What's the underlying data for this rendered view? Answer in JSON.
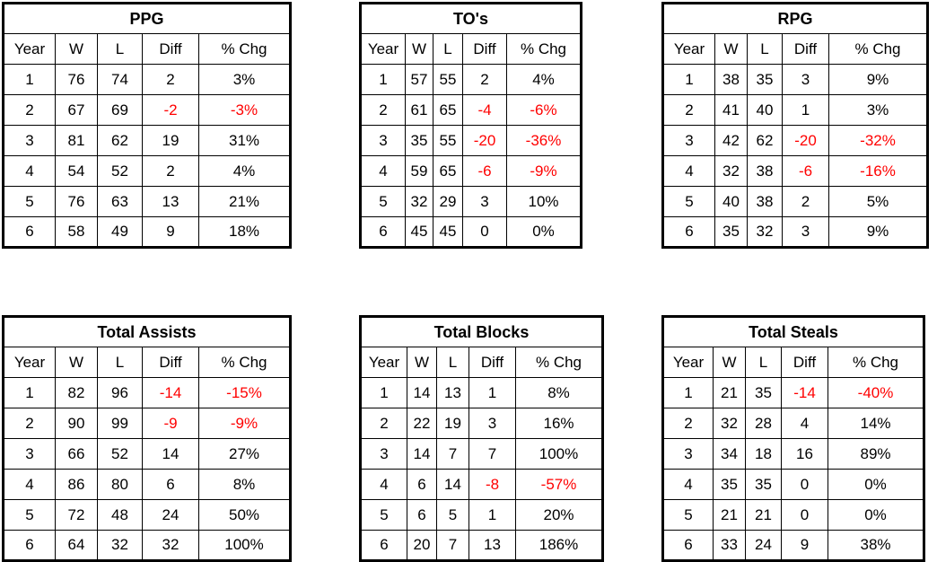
{
  "chart_data": [
    {
      "type": "table",
      "title": "PPG",
      "columns": [
        "Year",
        "W",
        "L",
        "Diff",
        "% Chg"
      ],
      "rows": [
        [
          "1",
          "76",
          "74",
          "2",
          "3%"
        ],
        [
          "2",
          "67",
          "69",
          "-2",
          "-3%"
        ],
        [
          "3",
          "81",
          "62",
          "19",
          "31%"
        ],
        [
          "4",
          "54",
          "52",
          "2",
          "4%"
        ],
        [
          "5",
          "76",
          "63",
          "13",
          "21%"
        ],
        [
          "6",
          "58",
          "49",
          "9",
          "18%"
        ]
      ]
    },
    {
      "type": "table",
      "title": "TO's",
      "columns": [
        "Year",
        "W",
        "L",
        "Diff",
        "% Chg"
      ],
      "rows": [
        [
          "1",
          "57",
          "55",
          "2",
          "4%"
        ],
        [
          "2",
          "61",
          "65",
          "-4",
          "-6%"
        ],
        [
          "3",
          "35",
          "55",
          "-20",
          "-36%"
        ],
        [
          "4",
          "59",
          "65",
          "-6",
          "-9%"
        ],
        [
          "5",
          "32",
          "29",
          "3",
          "10%"
        ],
        [
          "6",
          "45",
          "45",
          "0",
          "0%"
        ]
      ]
    },
    {
      "type": "table",
      "title": "RPG",
      "columns": [
        "Year",
        "W",
        "L",
        "Diff",
        "% Chg"
      ],
      "rows": [
        [
          "1",
          "38",
          "35",
          "3",
          "9%"
        ],
        [
          "2",
          "41",
          "40",
          "1",
          "3%"
        ],
        [
          "3",
          "42",
          "62",
          "-20",
          "-32%"
        ],
        [
          "4",
          "32",
          "38",
          "-6",
          "-16%"
        ],
        [
          "5",
          "40",
          "38",
          "2",
          "5%"
        ],
        [
          "6",
          "35",
          "32",
          "3",
          "9%"
        ]
      ]
    },
    {
      "type": "table",
      "title": "Total Assists",
      "columns": [
        "Year",
        "W",
        "L",
        "Diff",
        "% Chg"
      ],
      "rows": [
        [
          "1",
          "82",
          "96",
          "-14",
          "-15%"
        ],
        [
          "2",
          "90",
          "99",
          "-9",
          "-9%"
        ],
        [
          "3",
          "66",
          "52",
          "14",
          "27%"
        ],
        [
          "4",
          "86",
          "80",
          "6",
          "8%"
        ],
        [
          "5",
          "72",
          "48",
          "24",
          "50%"
        ],
        [
          "6",
          "64",
          "32",
          "32",
          "100%"
        ]
      ]
    },
    {
      "type": "table",
      "title": "Total Blocks",
      "columns": [
        "Year",
        "W",
        "L",
        "Diff",
        "% Chg"
      ],
      "rows": [
        [
          "1",
          "14",
          "13",
          "1",
          "8%"
        ],
        [
          "2",
          "22",
          "19",
          "3",
          "16%"
        ],
        [
          "3",
          "14",
          "7",
          "7",
          "100%"
        ],
        [
          "4",
          "6",
          "14",
          "-8",
          "-57%"
        ],
        [
          "5",
          "6",
          "5",
          "1",
          "20%"
        ],
        [
          "6",
          "20",
          "7",
          "13",
          "186%"
        ]
      ]
    },
    {
      "type": "table",
      "title": "Total Steals",
      "columns": [
        "Year",
        "W",
        "L",
        "Diff",
        "% Chg"
      ],
      "rows": [
        [
          "1",
          "21",
          "35",
          "-14",
          "-40%"
        ],
        [
          "2",
          "32",
          "28",
          "4",
          "14%"
        ],
        [
          "3",
          "34",
          "18",
          "16",
          "89%"
        ],
        [
          "4",
          "35",
          "35",
          "0",
          "0%"
        ],
        [
          "5",
          "21",
          "21",
          "0",
          "0%"
        ],
        [
          "6",
          "33",
          "24",
          "9",
          "38%"
        ]
      ]
    }
  ],
  "colors": {
    "text": "#000000",
    "negative": "#FF0000",
    "border": "#000000",
    "background": "#FFFFFF"
  }
}
